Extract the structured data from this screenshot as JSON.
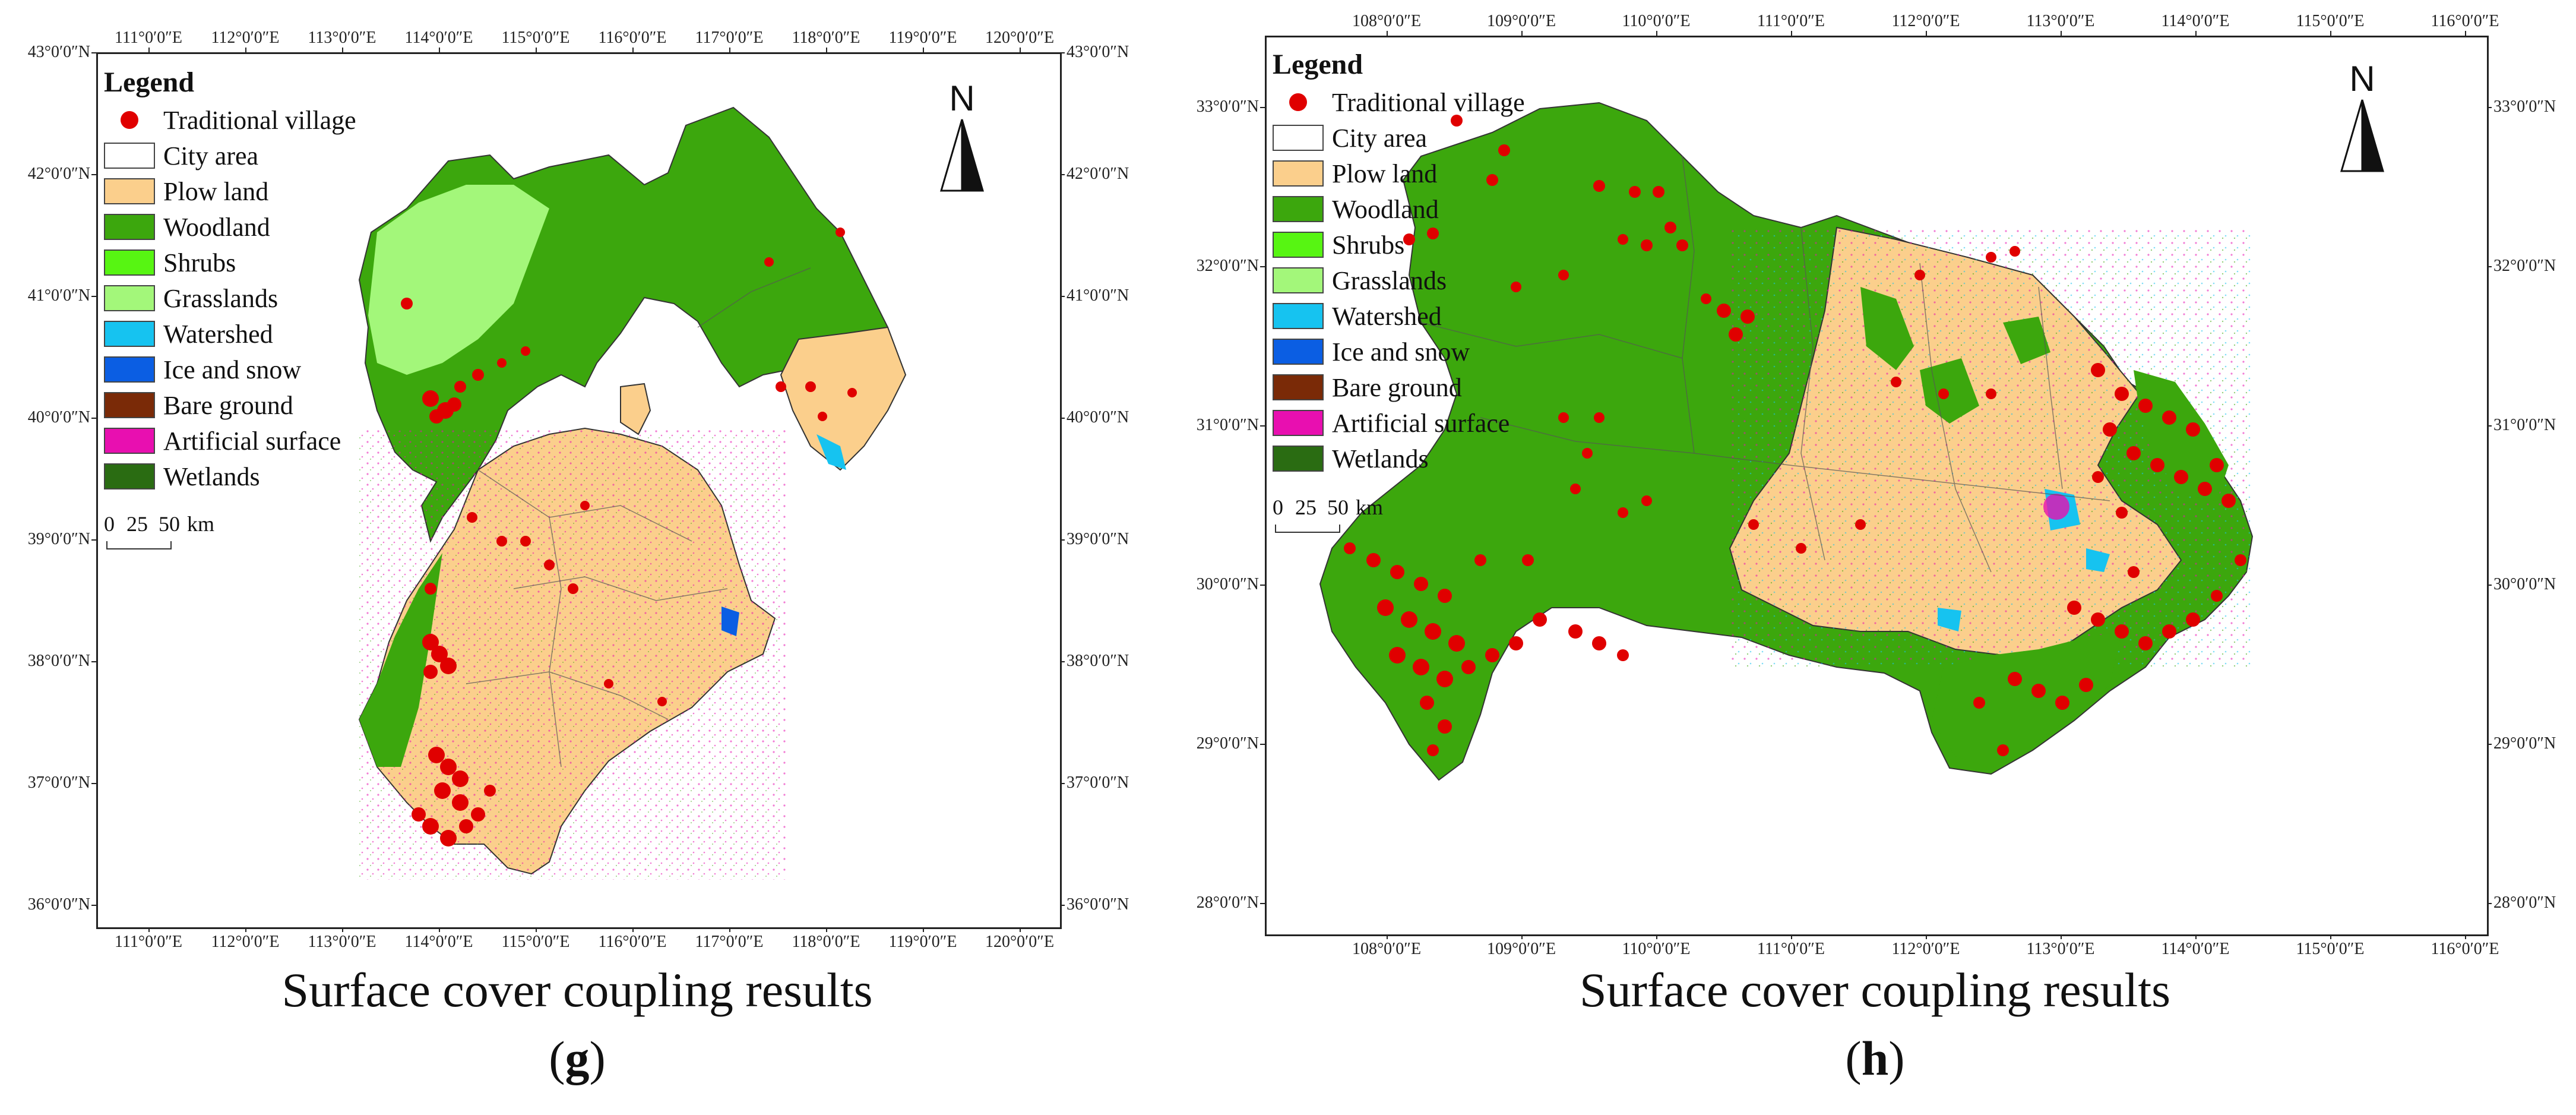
{
  "legend_items": [
    {
      "label": "Traditional village",
      "kind": "dot",
      "color": "#e00000"
    },
    {
      "label": "City area",
      "kind": "box",
      "color": "#ffffff"
    },
    {
      "label": "Plow land",
      "kind": "box",
      "color": "#fbcf8c"
    },
    {
      "label": "Woodland",
      "kind": "box",
      "color": "#3ca70d"
    },
    {
      "label": "Shrubs",
      "kind": "box",
      "color": "#57f512"
    },
    {
      "label": "Grasslands",
      "kind": "box",
      "color": "#a3f77a"
    },
    {
      "label": "Watershed",
      "kind": "box",
      "color": "#16c3f0"
    },
    {
      "label": "Ice and snow",
      "kind": "box",
      "color": "#0b5ee3"
    },
    {
      "label": "Bare ground",
      "kind": "box",
      "color": "#7a2a07"
    },
    {
      "label": "Artificial surface",
      "kind": "box",
      "color": "#e80fb0"
    },
    {
      "label": "Wetlands",
      "kind": "box",
      "color": "#2a6c12"
    }
  ],
  "panels": [
    {
      "id": "g",
      "legend_title": "Legend",
      "north_letter": "N",
      "scale_labels": [
        "0",
        "25",
        "50",
        "km"
      ],
      "caption": "Surface cover coupling results",
      "sublabel_open": "(",
      "sublabel_letter": "g",
      "sublabel_close": ")",
      "lon_ticks": [
        "111°0′0″E",
        "112°0′0″E",
        "113°0′0″E",
        "114°0′0″E",
        "115°0′0″E",
        "116°0′0″E",
        "117°0′0″E",
        "118°0′0″E",
        "119°0′0″E",
        "120°0′0″E"
      ],
      "lat_ticks": [
        "43°0′0″N",
        "42°0′0″N",
        "41°0′0″N",
        "40°0′0″N",
        "39°0′0″N",
        "38°0′0″N",
        "37°0′0″N",
        "36°0′0″N"
      ]
    },
    {
      "id": "h",
      "legend_title": "Legend",
      "north_letter": "N",
      "scale_labels": [
        "0",
        "25",
        "50",
        "km"
      ],
      "caption": "Surface cover coupling results",
      "sublabel_open": "(",
      "sublabel_letter": "h",
      "sublabel_close": ")",
      "lon_ticks": [
        "108°0′0″E",
        "109°0′0″E",
        "110°0′0″E",
        "111°0′0″E",
        "112°0′0″E",
        "113°0′0″E",
        "114°0′0″E",
        "115°0′0″E",
        "116°0′0″E"
      ],
      "lat_ticks": [
        "33°0′0″N",
        "32°0′0″N",
        "31°0′0″N",
        "30°0′0″N",
        "29°0′0″N",
        "28°0′0″N"
      ]
    }
  ]
}
